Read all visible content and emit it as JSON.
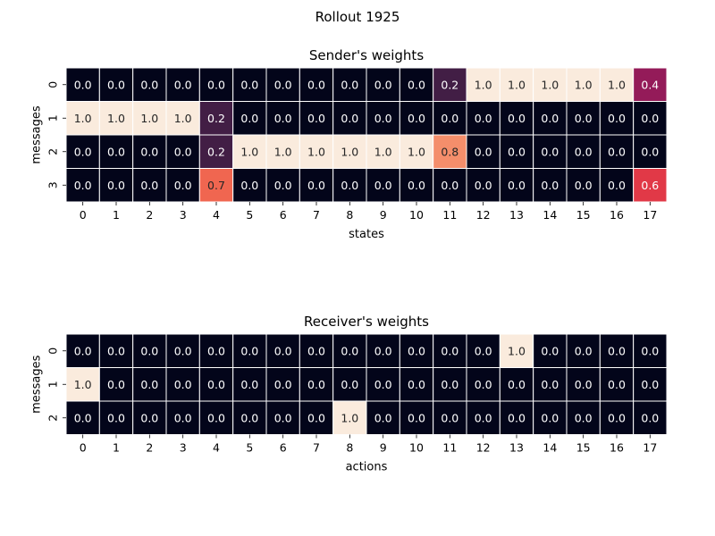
{
  "figure": {
    "suptitle": "Rollout 1925"
  },
  "colormap": {
    "name": "rocket",
    "stops": [
      "#03051a",
      "#2e1e3c",
      "#611f53",
      "#a11a5b",
      "#dd2c45",
      "#f26c51",
      "#f6a47c",
      "#faebdd"
    ],
    "range": [
      0,
      1
    ],
    "cell_border": "#ffffff",
    "dark_text": "#262626",
    "light_text": "#ffffff"
  },
  "chart_data": [
    {
      "type": "heatmap",
      "title": "Sender's weights",
      "xlabel": "states",
      "ylabel": "messages",
      "x": [
        "0",
        "1",
        "2",
        "3",
        "4",
        "5",
        "6",
        "7",
        "8",
        "9",
        "10",
        "11",
        "12",
        "13",
        "14",
        "15",
        "16",
        "17"
      ],
      "y": [
        "0",
        "1",
        "2",
        "3"
      ],
      "values": [
        [
          0.0,
          0.0,
          0.0,
          0.0,
          0.0,
          0.0,
          0.0,
          0.0,
          0.0,
          0.0,
          0.0,
          0.2,
          1.0,
          1.0,
          1.0,
          1.0,
          1.0,
          0.4
        ],
        [
          1.0,
          1.0,
          1.0,
          1.0,
          0.2,
          0.0,
          0.0,
          0.0,
          0.0,
          0.0,
          0.0,
          0.0,
          0.0,
          0.0,
          0.0,
          0.0,
          0.0,
          0.0
        ],
        [
          0.0,
          0.0,
          0.0,
          0.0,
          0.2,
          1.0,
          1.0,
          1.0,
          1.0,
          1.0,
          1.0,
          0.8,
          0.0,
          0.0,
          0.0,
          0.0,
          0.0,
          0.0
        ],
        [
          0.0,
          0.0,
          0.0,
          0.0,
          0.7,
          0.0,
          0.0,
          0.0,
          0.0,
          0.0,
          0.0,
          0.0,
          0.0,
          0.0,
          0.0,
          0.0,
          0.0,
          0.6
        ]
      ],
      "value_format": "0.0",
      "annotated": true,
      "colorbar": false
    },
    {
      "type": "heatmap",
      "title": "Receiver's weights",
      "xlabel": "actions",
      "ylabel": "messages",
      "x": [
        "0",
        "1",
        "2",
        "3",
        "4",
        "5",
        "6",
        "7",
        "8",
        "9",
        "10",
        "11",
        "12",
        "13",
        "14",
        "15",
        "16",
        "17"
      ],
      "y": [
        "0",
        "1",
        "2"
      ],
      "values": [
        [
          0.0,
          0.0,
          0.0,
          0.0,
          0.0,
          0.0,
          0.0,
          0.0,
          0.0,
          0.0,
          0.0,
          0.0,
          0.0,
          1.0,
          0.0,
          0.0,
          0.0,
          0.0
        ],
        [
          1.0,
          0.0,
          0.0,
          0.0,
          0.0,
          0.0,
          0.0,
          0.0,
          0.0,
          0.0,
          0.0,
          0.0,
          0.0,
          0.0,
          0.0,
          0.0,
          0.0,
          0.0
        ],
        [
          0.0,
          0.0,
          0.0,
          0.0,
          0.0,
          0.0,
          0.0,
          0.0,
          1.0,
          0.0,
          0.0,
          0.0,
          0.0,
          0.0,
          0.0,
          0.0,
          0.0,
          0.0
        ]
      ],
      "value_format": "0.0",
      "annotated": true,
      "colorbar": false
    }
  ]
}
